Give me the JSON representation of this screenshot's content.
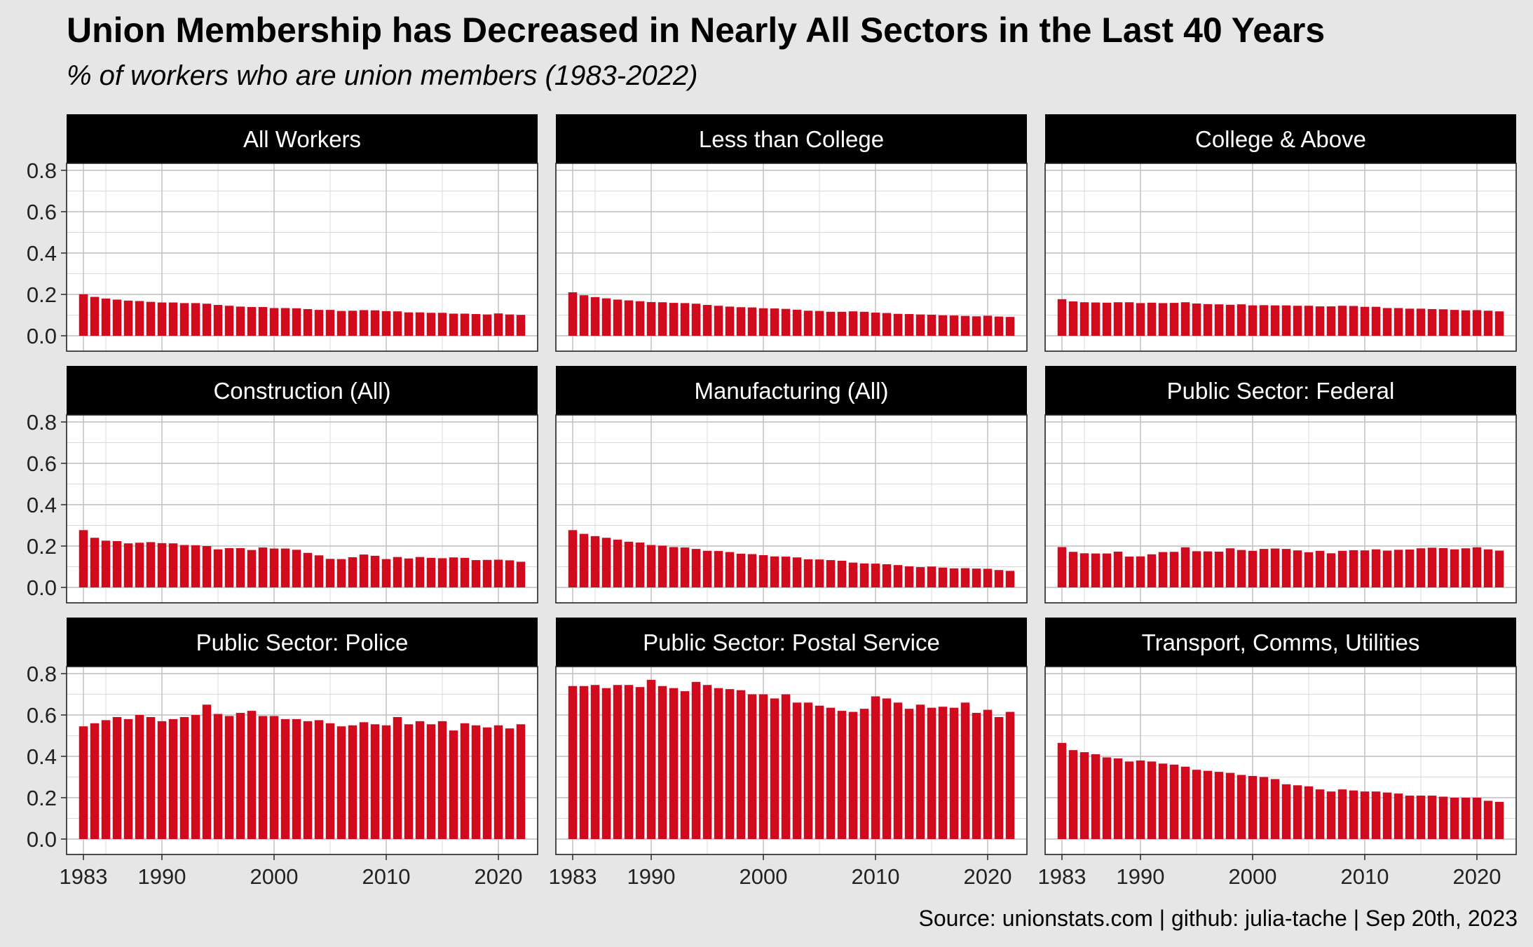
{
  "chart_data": {
    "type": "bar",
    "title": "Union Membership has Decreased in Nearly All Sectors in the Last 40 Years",
    "subtitle": "% of workers who are union members (1983-2022)",
    "caption": "Source: unionstats.com | github: julia-tache | Sep 20th, 2023",
    "facet_layout": "3x3",
    "bar_color": "#d20a1e",
    "strip_color": "#000000",
    "x": [
      1983,
      1984,
      1985,
      1986,
      1987,
      1988,
      1989,
      1990,
      1991,
      1992,
      1993,
      1994,
      1995,
      1996,
      1997,
      1998,
      1999,
      2000,
      2001,
      2002,
      2003,
      2004,
      2005,
      2006,
      2007,
      2008,
      2009,
      2010,
      2011,
      2012,
      2013,
      2014,
      2015,
      2016,
      2017,
      2018,
      2019,
      2020,
      2021,
      2022
    ],
    "x_ticks": [
      "1983",
      "1990",
      "2000",
      "2010",
      "2020"
    ],
    "y_ticks": [
      "0.0",
      "0.2",
      "0.4",
      "0.6",
      "0.8"
    ],
    "ylim": [
      0,
      0.8
    ],
    "xlim": [
      1981.5,
      2023.5
    ],
    "grid": true,
    "panels": [
      {
        "name": "All Workers",
        "values": [
          0.201,
          0.188,
          0.18,
          0.175,
          0.17,
          0.168,
          0.164,
          0.161,
          0.161,
          0.158,
          0.158,
          0.155,
          0.149,
          0.145,
          0.141,
          0.139,
          0.139,
          0.134,
          0.134,
          0.133,
          0.129,
          0.125,
          0.125,
          0.12,
          0.121,
          0.124,
          0.123,
          0.119,
          0.118,
          0.113,
          0.113,
          0.111,
          0.111,
          0.107,
          0.107,
          0.105,
          0.103,
          0.108,
          0.103,
          0.101
        ]
      },
      {
        "name": "Less than College",
        "values": [
          0.21,
          0.196,
          0.187,
          0.181,
          0.175,
          0.171,
          0.167,
          0.163,
          0.162,
          0.159,
          0.158,
          0.155,
          0.149,
          0.145,
          0.141,
          0.138,
          0.137,
          0.133,
          0.132,
          0.13,
          0.126,
          0.121,
          0.12,
          0.116,
          0.116,
          0.118,
          0.116,
          0.112,
          0.11,
          0.106,
          0.105,
          0.103,
          0.102,
          0.099,
          0.098,
          0.096,
          0.094,
          0.097,
          0.093,
          0.091
        ]
      },
      {
        "name": "College & Above",
        "values": [
          0.177,
          0.166,
          0.162,
          0.161,
          0.16,
          0.162,
          0.162,
          0.158,
          0.16,
          0.158,
          0.159,
          0.162,
          0.156,
          0.153,
          0.152,
          0.15,
          0.152,
          0.147,
          0.148,
          0.147,
          0.147,
          0.145,
          0.145,
          0.142,
          0.142,
          0.145,
          0.144,
          0.14,
          0.14,
          0.134,
          0.134,
          0.131,
          0.131,
          0.129,
          0.128,
          0.125,
          0.123,
          0.124,
          0.121,
          0.118
        ]
      },
      {
        "name": "Construction (All)",
        "values": [
          0.277,
          0.24,
          0.226,
          0.224,
          0.213,
          0.216,
          0.219,
          0.214,
          0.213,
          0.205,
          0.204,
          0.2,
          0.184,
          0.19,
          0.19,
          0.181,
          0.193,
          0.188,
          0.188,
          0.182,
          0.167,
          0.155,
          0.138,
          0.137,
          0.146,
          0.159,
          0.153,
          0.137,
          0.147,
          0.14,
          0.147,
          0.143,
          0.141,
          0.145,
          0.143,
          0.132,
          0.133,
          0.134,
          0.131,
          0.124
        ]
      },
      {
        "name": "Manufacturing (All)",
        "values": [
          0.277,
          0.259,
          0.248,
          0.24,
          0.231,
          0.221,
          0.217,
          0.205,
          0.202,
          0.195,
          0.193,
          0.186,
          0.177,
          0.176,
          0.171,
          0.163,
          0.161,
          0.156,
          0.15,
          0.149,
          0.145,
          0.136,
          0.135,
          0.132,
          0.129,
          0.12,
          0.116,
          0.115,
          0.112,
          0.108,
          0.102,
          0.098,
          0.101,
          0.096,
          0.092,
          0.093,
          0.091,
          0.09,
          0.084,
          0.08
        ]
      },
      {
        "name": "Public Sector: Federal",
        "values": [
          0.195,
          0.172,
          0.165,
          0.164,
          0.164,
          0.173,
          0.149,
          0.15,
          0.16,
          0.171,
          0.172,
          0.194,
          0.175,
          0.174,
          0.173,
          0.189,
          0.181,
          0.177,
          0.186,
          0.188,
          0.186,
          0.179,
          0.17,
          0.177,
          0.165,
          0.177,
          0.18,
          0.179,
          0.184,
          0.178,
          0.182,
          0.183,
          0.189,
          0.192,
          0.19,
          0.184,
          0.189,
          0.194,
          0.184,
          0.178
        ]
      },
      {
        "name": "Public Sector: Police",
        "values": [
          0.545,
          0.56,
          0.575,
          0.59,
          0.58,
          0.6,
          0.59,
          0.57,
          0.58,
          0.59,
          0.6,
          0.65,
          0.605,
          0.595,
          0.61,
          0.62,
          0.595,
          0.595,
          0.58,
          0.58,
          0.57,
          0.575,
          0.56,
          0.545,
          0.55,
          0.565,
          0.555,
          0.55,
          0.59,
          0.555,
          0.57,
          0.555,
          0.57,
          0.525,
          0.56,
          0.55,
          0.54,
          0.55,
          0.535,
          0.555
        ]
      },
      {
        "name": "Public Sector: Postal Service",
        "values": [
          0.74,
          0.74,
          0.745,
          0.73,
          0.745,
          0.745,
          0.735,
          0.77,
          0.74,
          0.73,
          0.715,
          0.76,
          0.745,
          0.73,
          0.725,
          0.72,
          0.7,
          0.7,
          0.68,
          0.7,
          0.66,
          0.66,
          0.645,
          0.635,
          0.62,
          0.615,
          0.63,
          0.69,
          0.68,
          0.66,
          0.63,
          0.65,
          0.635,
          0.64,
          0.635,
          0.66,
          0.61,
          0.625,
          0.59,
          0.615
        ]
      },
      {
        "name": "Transport, Comms, Utilities",
        "values": [
          0.465,
          0.43,
          0.42,
          0.41,
          0.395,
          0.39,
          0.375,
          0.38,
          0.375,
          0.365,
          0.36,
          0.35,
          0.335,
          0.33,
          0.325,
          0.32,
          0.31,
          0.305,
          0.3,
          0.29,
          0.265,
          0.26,
          0.255,
          0.24,
          0.23,
          0.24,
          0.235,
          0.23,
          0.23,
          0.225,
          0.22,
          0.21,
          0.21,
          0.21,
          0.205,
          0.2,
          0.2,
          0.2,
          0.185,
          0.18
        ]
      }
    ]
  }
}
